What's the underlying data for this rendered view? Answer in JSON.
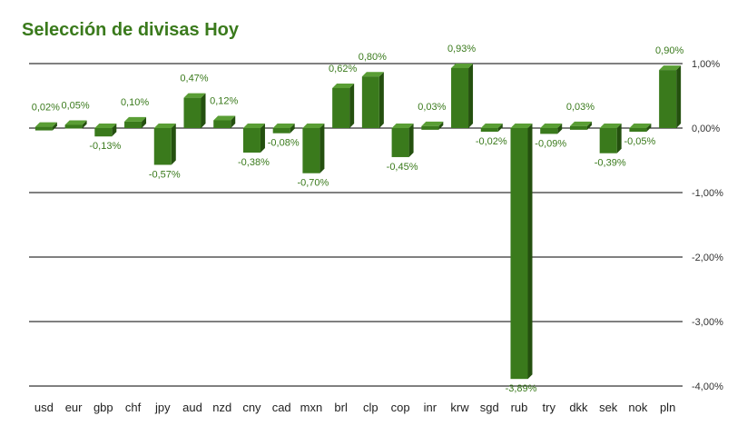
{
  "chart_data": {
    "type": "bar",
    "title": "Selección de divisas Hoy",
    "categories": [
      "usd",
      "eur",
      "gbp",
      "chf",
      "jpy",
      "aud",
      "nzd",
      "cny",
      "cad",
      "mxn",
      "brl",
      "clp",
      "cop",
      "inr",
      "krw",
      "sgd",
      "rub",
      "try",
      "dkk",
      "sek",
      "nok",
      "pln"
    ],
    "values": [
      0.02,
      0.05,
      -0.13,
      0.1,
      -0.57,
      0.47,
      0.12,
      -0.38,
      -0.08,
      -0.7,
      0.62,
      0.8,
      -0.45,
      0.03,
      0.93,
      -0.02,
      -3.89,
      -0.09,
      0.03,
      -0.39,
      -0.05,
      0.9
    ],
    "value_labels": [
      "0,02%",
      "0,05%",
      "-0,13%",
      "0,10%",
      "-0,57%",
      "0,47%",
      "0,12%",
      "-0,38%",
      "-0,08%",
      "-0,70%",
      "0,62%",
      "0,80%",
      "-0,45%",
      "0,03%",
      "0,93%",
      "-0,02%",
      "-3,89%",
      "-0,09%",
      "0,03%",
      "-0,39%",
      "-0,05%",
      "0,90%"
    ],
    "yticks": [
      1,
      0,
      -1,
      -2,
      -3,
      -4
    ],
    "ytick_labels": [
      "1,00%",
      "0,00%",
      "-1,00%",
      "-2,00%",
      "-3,00%",
      "-4,00%"
    ],
    "ylim": [
      -4,
      1
    ],
    "grid": true,
    "bar_color": "#3a7a1c",
    "bar_top_color": "#5a9e35",
    "bar_side_color": "#24500f",
    "title_color": "#3a7a1c",
    "label_color": "#3a7a1c"
  }
}
